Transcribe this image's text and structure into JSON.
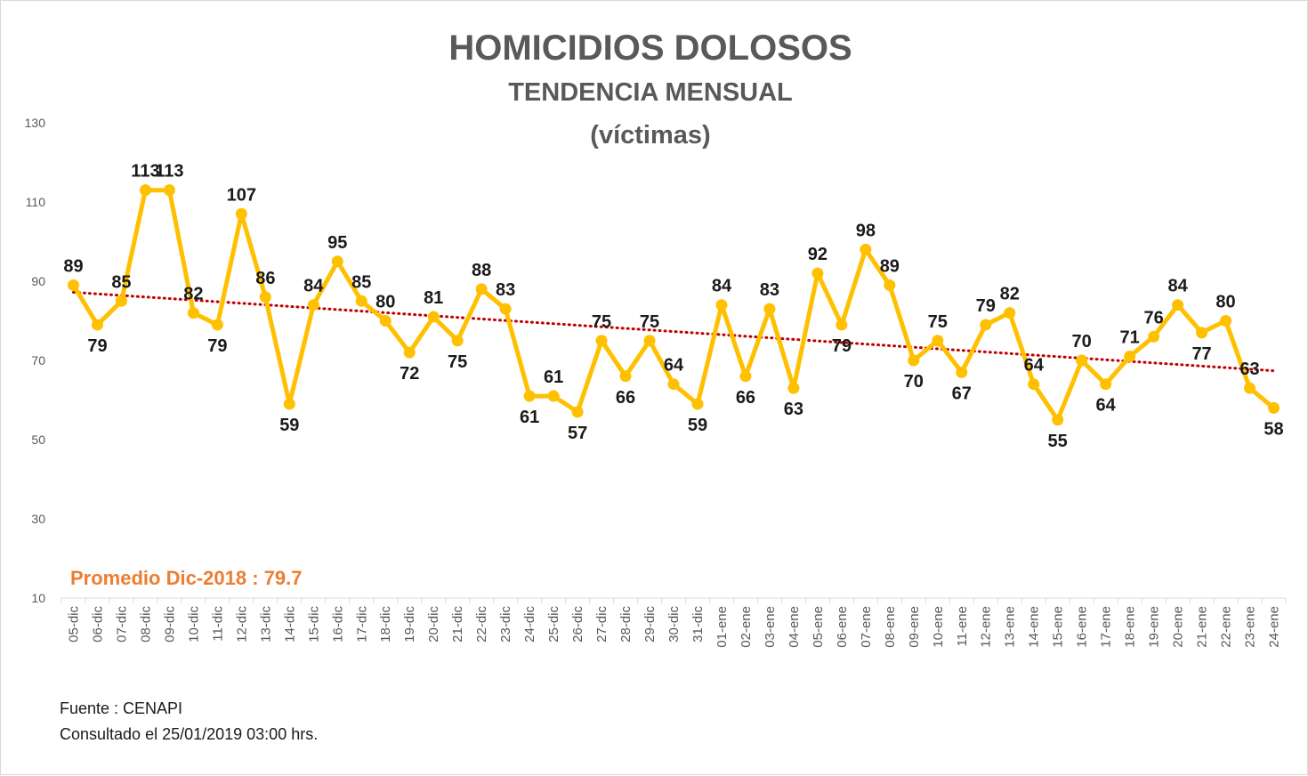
{
  "colors": {
    "line": "#FFC000",
    "trend": "#C00000",
    "average_text": "#ED7D31",
    "title": "#595959",
    "axis": "#d9d9d9"
  },
  "average_label": "Promedio Dic-2018 : 79.7",
  "source": "Fuente : CENAPI",
  "consulted": "Consultado el 25/01/2019  03:00 hrs.",
  "chart_data": {
    "type": "line",
    "title": "HOMICIDIOS DOLOSOS",
    "subtitle": "TENDENCIA MENSUAL",
    "subtitle2": "(víctimas)",
    "xlabel": "",
    "ylabel": "",
    "ylim": [
      10,
      130
    ],
    "yticks": [
      10,
      30,
      50,
      70,
      90,
      110,
      130
    ],
    "grid": false,
    "legend": "none",
    "trendline": "linear",
    "categories": [
      "05-dic",
      "06-dic",
      "07-dic",
      "08-dic",
      "09-dic",
      "10-dic",
      "11-dic",
      "12-dic",
      "13-dic",
      "14-dic",
      "15-dic",
      "16-dic",
      "17-dic",
      "18-dic",
      "19-dic",
      "20-dic",
      "21-dic",
      "22-dic",
      "23-dic",
      "24-dic",
      "25-dic",
      "26-dic",
      "27-dic",
      "28-dic",
      "29-dic",
      "30-dic",
      "31-dic",
      "01-ene",
      "02-ene",
      "03-ene",
      "04-ene",
      "05-ene",
      "06-ene",
      "07-ene",
      "08-ene",
      "09-ene",
      "10-ene",
      "11-ene",
      "12-ene",
      "13-ene",
      "14-ene",
      "15-ene",
      "16-ene",
      "17-ene",
      "18-ene",
      "19-ene",
      "20-ene",
      "21-ene",
      "22-ene",
      "23-ene",
      "24-ene"
    ],
    "series": [
      {
        "values": [
          89,
          79,
          85,
          113,
          113,
          82,
          79,
          107,
          86,
          59,
          84,
          95,
          85,
          80,
          72,
          81,
          75,
          88,
          83,
          61,
          61,
          57,
          75,
          66,
          75,
          64,
          59,
          84,
          66,
          83,
          63,
          92,
          79,
          98,
          89,
          70,
          75,
          67,
          79,
          82,
          64,
          55,
          70,
          64,
          71,
          76,
          84,
          77,
          80,
          63,
          58
        ]
      }
    ]
  }
}
